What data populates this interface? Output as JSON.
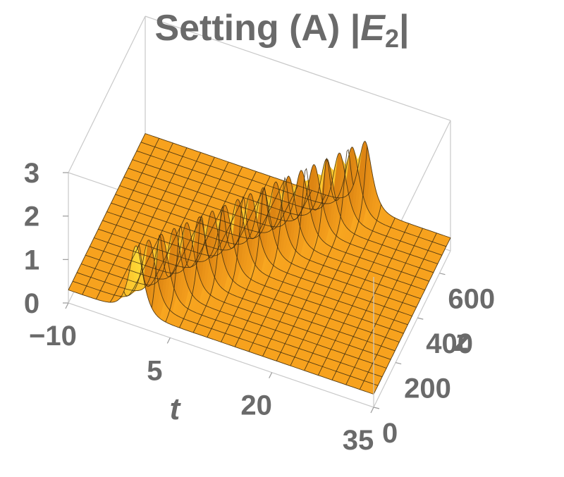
{
  "chart_data": {
    "type": "surface",
    "title": {
      "main": "Setting (A) |",
      "symbol": "E",
      "subscript": "2",
      "close": "|"
    },
    "xlabel": "t",
    "ylabel": "z",
    "xlim": [
      -10,
      35
    ],
    "ylim": [
      0,
      700
    ],
    "zlim": [
      0,
      3
    ],
    "x_ticks": [
      "-10",
      "5",
      "20",
      "35"
    ],
    "y_ticks": [
      "0",
      "200",
      "400",
      "600"
    ],
    "z_ticks": [
      "0",
      "1",
      "2",
      "3"
    ],
    "soliton": {
      "background": 0.3,
      "peak_amplitude": 1.55,
      "center_t_at_z0": 0,
      "velocity_t_per_z": 0.032,
      "width": 0.9
    },
    "colors": {
      "surface_base": "#f7a21e",
      "surface_highlight": "#ffe23a",
      "mesh": "#3a2a10",
      "box": "#c9c9c9",
      "text": "#6a6a6a"
    }
  }
}
